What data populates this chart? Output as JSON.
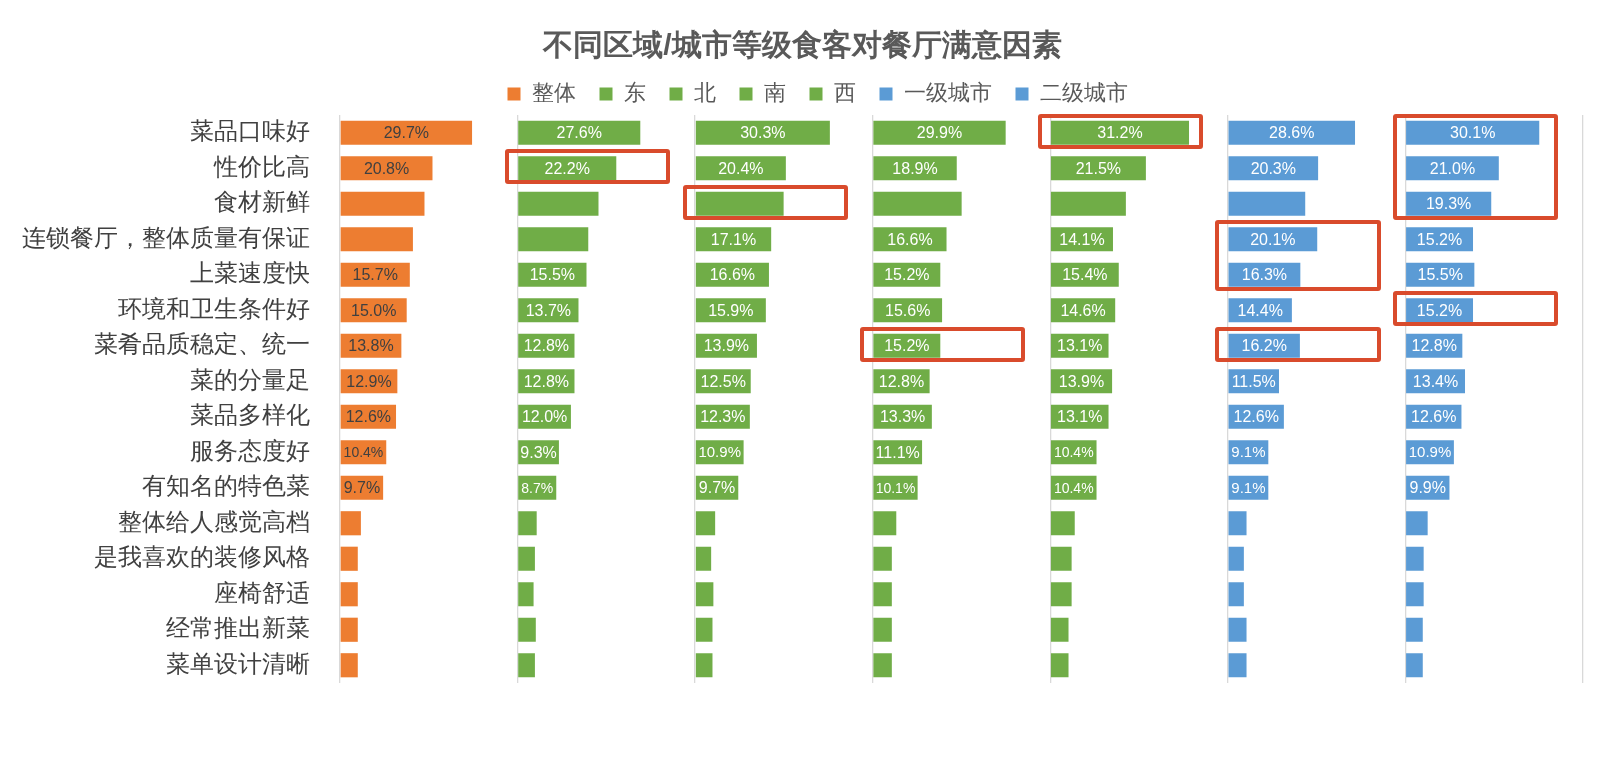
{
  "chart_data": [
    {
      "type": "other",
      "title": "不同区域/城市等级食客对餐厅满意因素"
    },
    {
      "type": "bar",
      "orientation": "horizontal",
      "legend": "top",
      "tick_labels": "y",
      "categories": [
        "菜品口味好",
        "性价比高",
        "食材新鲜",
        "连锁餐厅，整体质量有保证",
        "上菜速度快",
        "环境和卫生条件好",
        "菜肴品质稳定、统一",
        "菜的分量足",
        "菜品多样化",
        "服务态度好",
        "有知名的特色菜",
        "整体给人感觉高档",
        "是我喜欢的装修风格",
        "座椅舒适",
        "经常推出新菜",
        "菜单设计清晰"
      ],
      "series": [
        {
          "name": "整体",
          "color": "#ed7d31",
          "values": [
            29.7,
            20.8,
            19.0,
            16.4,
            15.7,
            15.0,
            13.8,
            12.9,
            12.6,
            10.4,
            9.7,
            4.7,
            4.0,
            4.0,
            4.0,
            4.0
          ],
          "value_labels": [
            "29.7%",
            "20.8%",
            null,
            null,
            "15.7%",
            "15.0%",
            "13.8%",
            "12.9%",
            "12.6%",
            "10.4%",
            "9.7%",
            null,
            null,
            null,
            null,
            null
          ]
        }
      ]
    },
    {
      "type": "bar",
      "orientation": "horizontal",
      "legend": "top",
      "tick_labels": false,
      "categories": [
        null,
        null,
        null,
        null,
        null,
        null,
        null,
        null,
        null,
        null,
        null,
        null,
        null,
        null,
        null,
        null
      ],
      "series": [
        {
          "name": "东",
          "color": "#70ad47",
          "values": [
            27.6,
            22.2,
            18.2,
            15.9,
            15.5,
            13.7,
            12.8,
            12.8,
            12.0,
            9.3,
            8.7,
            4.3,
            3.9,
            3.6,
            4.1,
            3.9
          ],
          "value_labels": [
            "27.6%",
            "22.2%",
            null,
            null,
            "15.5%",
            "13.7%",
            "12.8%",
            "12.8%",
            "12.0%",
            "9.3%",
            "8.7%",
            null,
            null,
            null,
            null,
            null
          ]
        }
      ]
    },
    {
      "type": "bar",
      "orientation": "horizontal",
      "legend": "top",
      "tick_labels": false,
      "categories": [
        null,
        null,
        null,
        null,
        null,
        null,
        null,
        null,
        null,
        null,
        null,
        null,
        null,
        null,
        null,
        null
      ],
      "series": [
        {
          "name": "北",
          "color": "#70ad47",
          "values": [
            30.3,
            20.4,
            19.9,
            17.1,
            16.6,
            15.9,
            13.9,
            12.5,
            12.3,
            10.9,
            9.7,
            4.5,
            3.6,
            4.1,
            3.9,
            3.9
          ],
          "value_labels": [
            "30.3%",
            "20.4%",
            null,
            "17.1%",
            "16.6%",
            "15.9%",
            "13.9%",
            "12.5%",
            "12.3%",
            "10.9%",
            "9.7%",
            null,
            null,
            null,
            null,
            null
          ]
        }
      ]
    },
    {
      "type": "bar",
      "orientation": "horizontal",
      "legend": "top",
      "tick_labels": false,
      "categories": [
        null,
        null,
        null,
        null,
        null,
        null,
        null,
        null,
        null,
        null,
        null,
        null,
        null,
        null,
        null,
        null
      ],
      "series": [
        {
          "name": "南",
          "color": "#70ad47",
          "values": [
            29.9,
            18.9,
            20.0,
            16.6,
            15.2,
            15.6,
            15.2,
            12.8,
            13.3,
            11.1,
            10.1,
            5.3,
            4.3,
            4.3,
            4.3,
            4.3
          ],
          "value_labels": [
            "29.9%",
            "18.9%",
            null,
            "16.6%",
            "15.2%",
            "15.6%",
            "15.2%",
            "12.8%",
            "13.3%",
            "11.1%",
            "10.1%",
            null,
            null,
            null,
            null,
            null
          ]
        }
      ]
    },
    {
      "type": "bar",
      "orientation": "horizontal",
      "legend": "top",
      "tick_labels": false,
      "categories": [
        null,
        null,
        null,
        null,
        null,
        null,
        null,
        null,
        null,
        null,
        null,
        null,
        null,
        null,
        null,
        null
      ],
      "series": [
        {
          "name": "西",
          "color": "#70ad47",
          "values": [
            31.2,
            21.5,
            17.0,
            14.1,
            15.4,
            14.6,
            13.1,
            13.9,
            13.1,
            10.4,
            10.4,
            5.5,
            4.8,
            4.8,
            4.1,
            4.1
          ],
          "value_labels": [
            "31.2%",
            "21.5%",
            null,
            "14.1%",
            "15.4%",
            "14.6%",
            "13.1%",
            "13.9%",
            "13.1%",
            "10.4%",
            "10.4%",
            null,
            null,
            null,
            null,
            null
          ]
        }
      ]
    },
    {
      "type": "bar",
      "orientation": "horizontal",
      "legend": "top",
      "tick_labels": false,
      "categories": [
        null,
        null,
        null,
        null,
        null,
        null,
        null,
        null,
        null,
        null,
        null,
        null,
        null,
        null,
        null,
        null
      ],
      "series": [
        {
          "name": "一级城市",
          "color": "#5b9bd5",
          "values": [
            28.6,
            20.3,
            17.4,
            20.1,
            16.3,
            14.4,
            16.2,
            11.5,
            12.6,
            9.1,
            9.1,
            4.2,
            3.6,
            3.6,
            4.2,
            4.2
          ],
          "value_labels": [
            "28.6%",
            "20.3%",
            null,
            "20.1%",
            "16.3%",
            "14.4%",
            "16.2%",
            "11.5%",
            "12.6%",
            "9.1%",
            "9.1%",
            null,
            null,
            null,
            null,
            null
          ]
        }
      ]
    },
    {
      "type": "bar",
      "orientation": "horizontal",
      "legend": "top",
      "tick_labels": false,
      "categories": [
        null,
        null,
        null,
        null,
        null,
        null,
        null,
        null,
        null,
        null,
        null,
        null,
        null,
        null,
        null,
        null
      ],
      "series": [
        {
          "name": "二级城市",
          "color": "#5b9bd5",
          "values": [
            30.1,
            21.0,
            19.3,
            15.2,
            15.5,
            15.2,
            12.8,
            13.4,
            12.6,
            10.9,
            9.9,
            5.0,
            4.1,
            4.1,
            3.9,
            3.9
          ],
          "value_labels": [
            "30.1%",
            "21.0%",
            "19.3%",
            "15.2%",
            "15.5%",
            "15.2%",
            "12.8%",
            "13.4%",
            "12.6%",
            "10.9%",
            "9.9%",
            null,
            null,
            null,
            null,
            null
          ]
        }
      ]
    }
  ]
}
